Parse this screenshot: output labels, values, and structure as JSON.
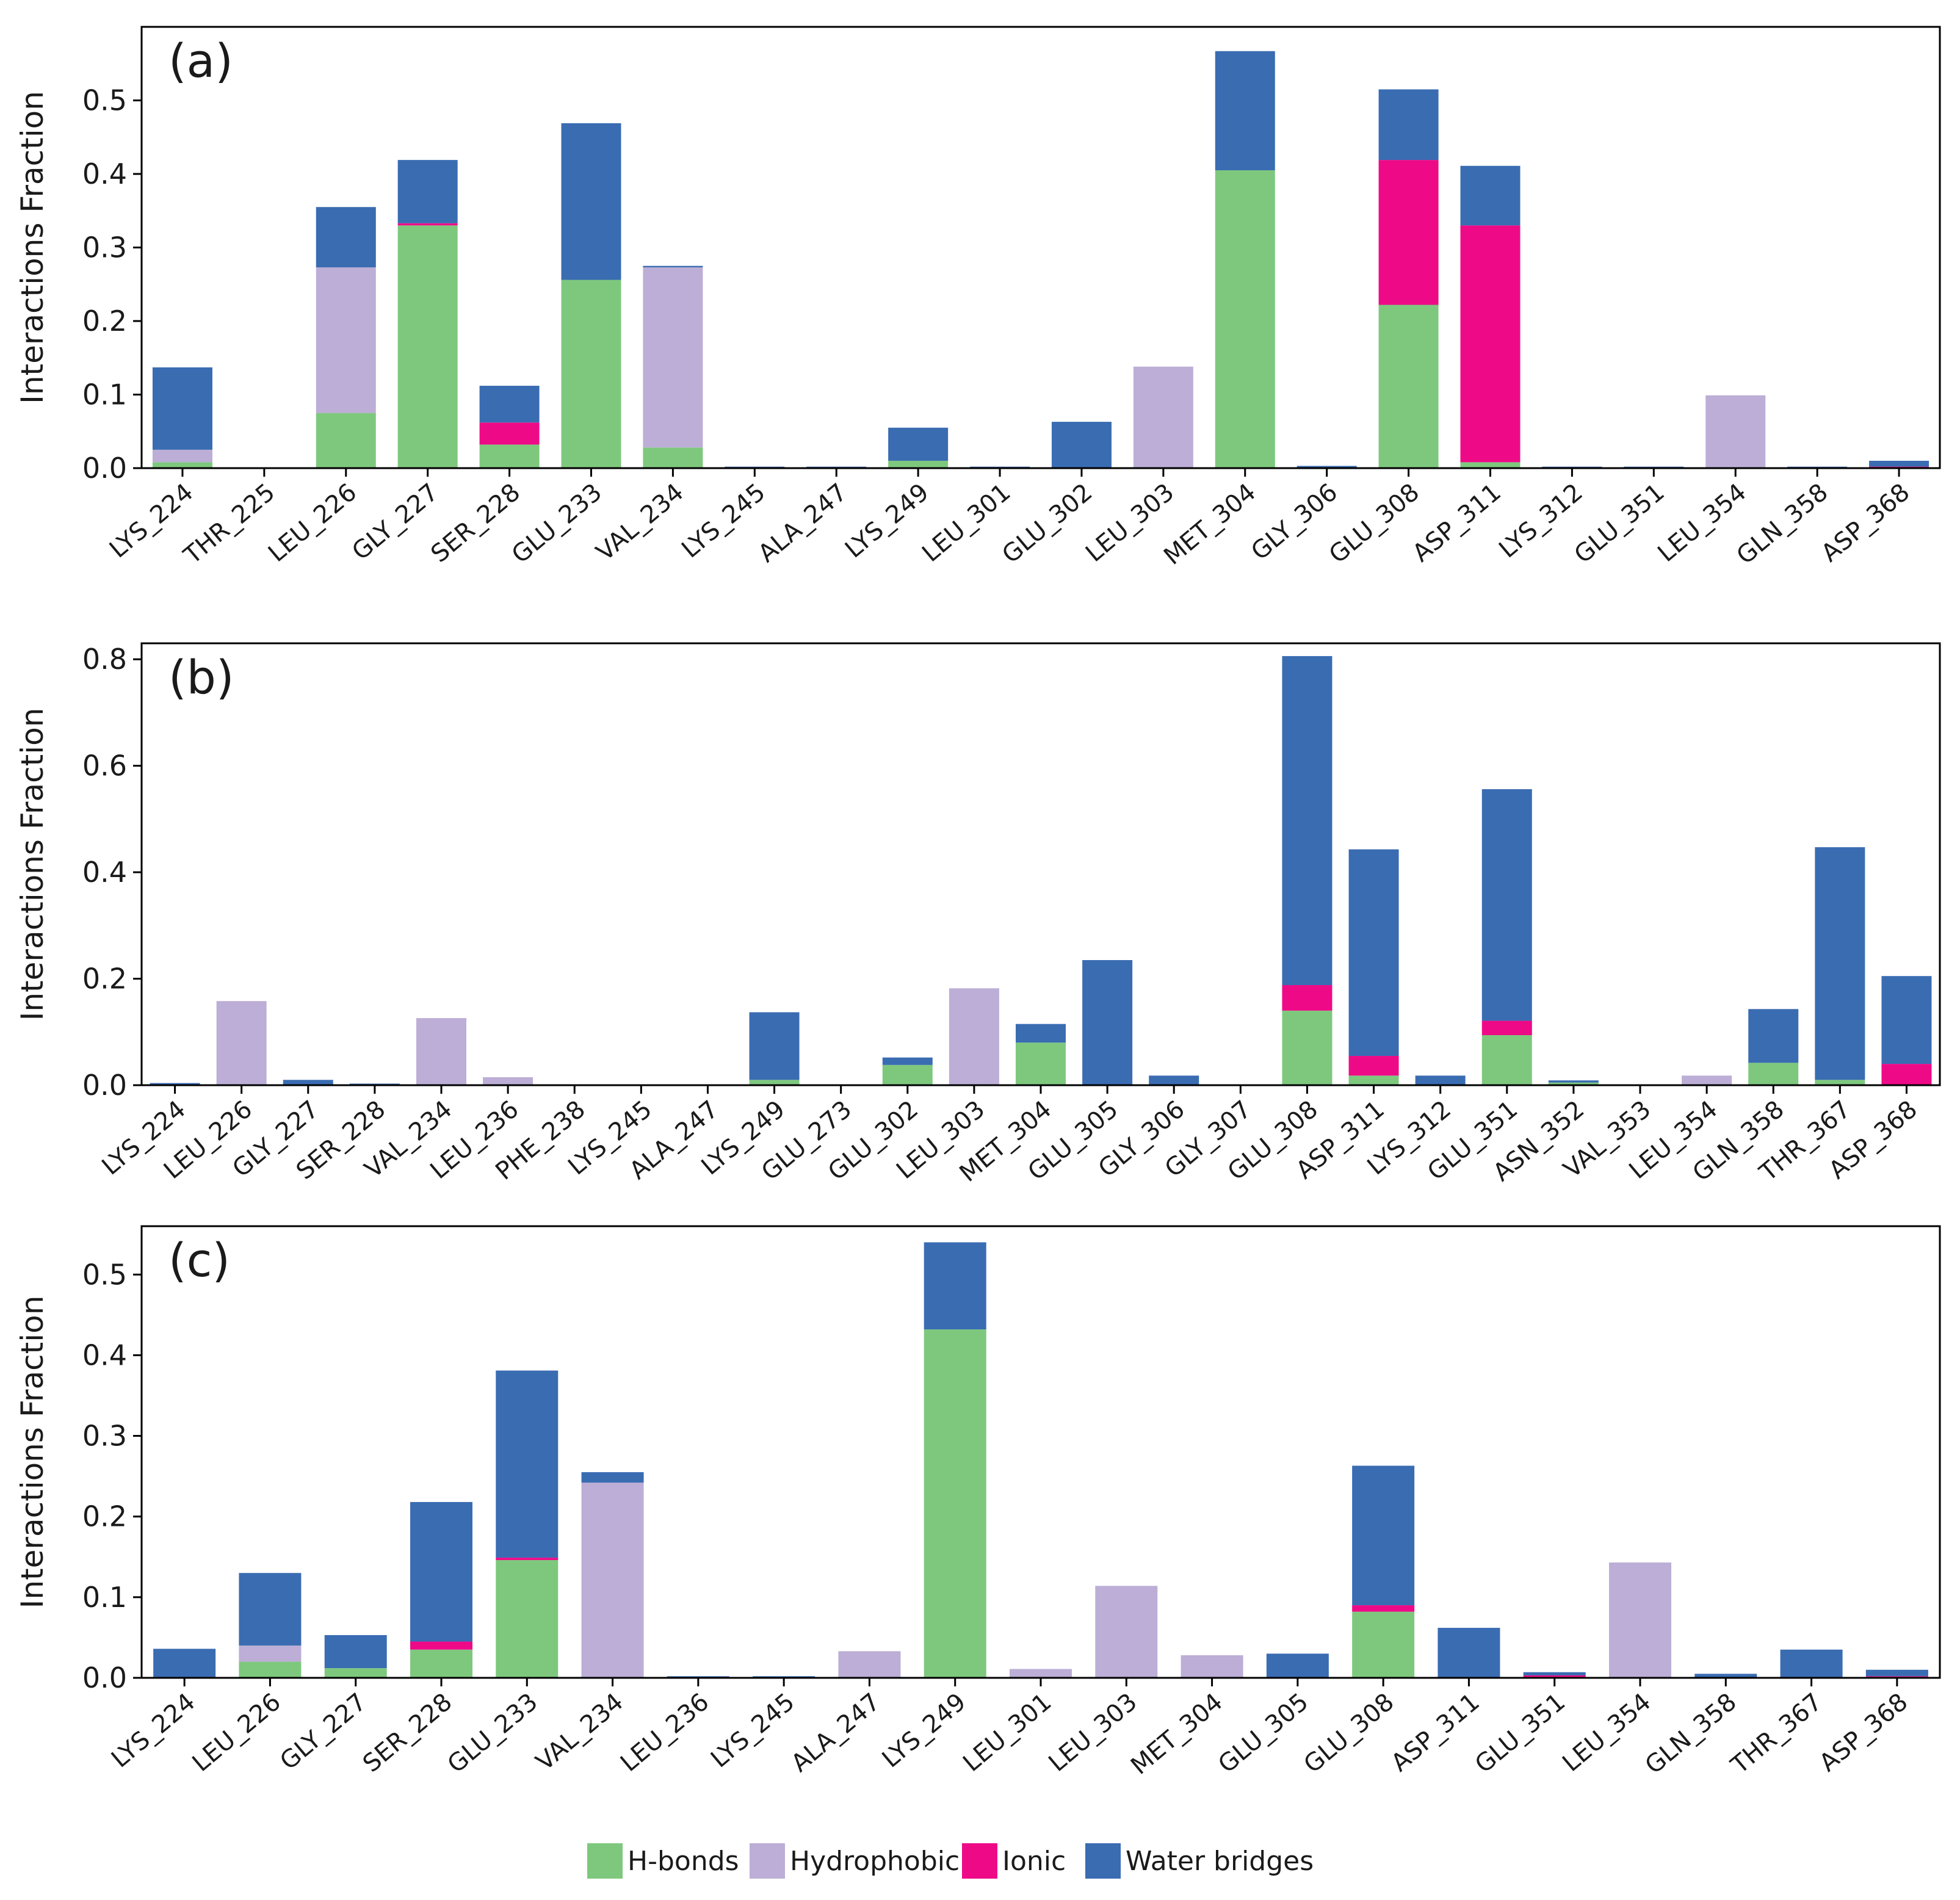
{
  "colors": {
    "hbonds": "#7ec87e",
    "hydrophobic": "#bcaed6",
    "ionic": "#ee0a87",
    "water": "#3a6cb2"
  },
  "legend": {
    "items": [
      {
        "key": "hbonds",
        "label": "H-bonds"
      },
      {
        "key": "hydrophobic",
        "label": "Hydrophobic"
      },
      {
        "key": "ionic",
        "label": "Ionic"
      },
      {
        "key": "water",
        "label": "Water bridges"
      }
    ]
  },
  "chart_data": [
    {
      "type": "bar",
      "stacked": true,
      "panel_label": "(a)",
      "ylabel": "Interactions Fraction",
      "xlabel": "",
      "ylim": [
        0,
        0.6
      ],
      "yticks": [
        0.0,
        0.1,
        0.2,
        0.3,
        0.4,
        0.5
      ],
      "categories": [
        "LYS_224",
        "THR_225",
        "LEU_226",
        "GLY_227",
        "SER_228",
        "GLU_233",
        "VAL_234",
        "LYS_245",
        "ALA_247",
        "LYS_249",
        "LEU_301",
        "GLU_302",
        "LEU_303",
        "MET_304",
        "GLY_306",
        "GLU_308",
        "ASP_311",
        "LYS_312",
        "GLU_351",
        "LEU_354",
        "GLN_358",
        "ASP_368"
      ],
      "series": [
        {
          "name": "H-bonds",
          "key": "hbonds",
          "values": [
            0.008,
            0,
            0.075,
            0.33,
            0.032,
            0.256,
            0.028,
            0,
            0,
            0.01,
            0,
            0,
            0,
            0.405,
            0,
            0.222,
            0.008,
            0,
            0,
            0,
            0,
            0
          ]
        },
        {
          "name": "Hydrophobic",
          "key": "hydrophobic",
          "values": [
            0.017,
            0,
            0.198,
            0,
            0,
            0,
            0.245,
            0,
            0,
            0,
            0,
            0,
            0.138,
            0,
            0,
            0,
            0,
            0,
            0,
            0.099,
            0,
            0
          ]
        },
        {
          "name": "Ionic",
          "key": "ionic",
          "values": [
            0,
            0,
            0,
            0.003,
            0.03,
            0,
            0,
            0,
            0,
            0,
            0,
            0,
            0,
            0,
            0,
            0.197,
            0.322,
            0,
            0,
            0,
            0,
            0.002
          ]
        },
        {
          "name": "Water bridges",
          "key": "water",
          "values": [
            0.112,
            0,
            0.082,
            0.086,
            0.05,
            0.213,
            0.002,
            0.002,
            0.002,
            0.045,
            0.002,
            0.063,
            0,
            0.162,
            0.003,
            0.096,
            0.081,
            0.002,
            0.002,
            0,
            0.002,
            0.008
          ]
        }
      ]
    },
    {
      "type": "bar",
      "stacked": true,
      "panel_label": "(b)",
      "ylabel": "Interactions Fraction",
      "xlabel": "",
      "ylim": [
        0,
        0.83
      ],
      "yticks": [
        0.0,
        0.2,
        0.4,
        0.6,
        0.8
      ],
      "categories": [
        "LYS_224",
        "LEU_226",
        "GLY_227",
        "SER_228",
        "VAL_234",
        "LEU_236",
        "PHE_238",
        "LYS_245",
        "ALA_247",
        "LYS_249",
        "GLU_273",
        "GLU_302",
        "LEU_303",
        "MET_304",
        "GLU_305",
        "GLY_306",
        "GLY_307",
        "GLU_308",
        "ASP_311",
        "LYS_312",
        "GLU_351",
        "ASN_352",
        "VAL_353",
        "LEU_354",
        "GLN_358",
        "THR_367",
        "ASP_368"
      ],
      "series": [
        {
          "name": "H-bonds",
          "key": "hbonds",
          "values": [
            0,
            0,
            0,
            0,
            0,
            0,
            0,
            0,
            0,
            0.01,
            0,
            0.038,
            0,
            0.08,
            0,
            0,
            0,
            0.14,
            0.018,
            0,
            0.094,
            0.005,
            0,
            0,
            0.042,
            0.01,
            0
          ]
        },
        {
          "name": "Hydrophobic",
          "key": "hydrophobic",
          "values": [
            0,
            0.158,
            0,
            0,
            0.126,
            0.015,
            0,
            0,
            0,
            0,
            0,
            0,
            0.182,
            0,
            0,
            0,
            0,
            0,
            0,
            0,
            0,
            0,
            0,
            0.018,
            0,
            0,
            0
          ]
        },
        {
          "name": "Ionic",
          "key": "ionic",
          "values": [
            0,
            0,
            0,
            0,
            0,
            0,
            0,
            0,
            0,
            0,
            0,
            0,
            0,
            0,
            0,
            0,
            0,
            0.048,
            0.037,
            0,
            0.027,
            0,
            0,
            0,
            0,
            0,
            0.04
          ]
        },
        {
          "name": "Water bridges",
          "key": "water",
          "values": [
            0.004,
            0,
            0.01,
            0.003,
            0,
            0,
            0,
            0,
            0,
            0.127,
            0,
            0.014,
            0,
            0.035,
            0.235,
            0.018,
            0,
            0.618,
            0.388,
            0.018,
            0.435,
            0.004,
            0,
            0,
            0.101,
            0.437,
            0.165
          ]
        }
      ]
    },
    {
      "type": "bar",
      "stacked": true,
      "panel_label": "(c)",
      "ylabel": "Interactions Fraction",
      "xlabel": "",
      "ylim": [
        0,
        0.56
      ],
      "yticks": [
        0.0,
        0.1,
        0.2,
        0.3,
        0.4,
        0.5
      ],
      "categories": [
        "LYS_224",
        "LEU_226",
        "GLY_227",
        "SER_228",
        "GLU_233",
        "VAL_234",
        "LEU_236",
        "LYS_245",
        "ALA_247",
        "LYS_249",
        "LEU_301",
        "LEU_303",
        "MET_304",
        "GLU_305",
        "GLU_308",
        "ASP_311",
        "GLU_351",
        "LEU_354",
        "GLN_358",
        "THR_367",
        "ASP_368"
      ],
      "series": [
        {
          "name": "H-bonds",
          "key": "hbonds",
          "values": [
            0,
            0.02,
            0.012,
            0.035,
            0.146,
            0,
            0,
            0,
            0,
            0.432,
            0,
            0,
            0,
            0,
            0.082,
            0,
            0,
            0,
            0,
            0,
            0
          ]
        },
        {
          "name": "Hydrophobic",
          "key": "hydrophobic",
          "values": [
            0,
            0.02,
            0,
            0,
            0,
            0.242,
            0,
            0,
            0.033,
            0,
            0.011,
            0.114,
            0.028,
            0,
            0,
            0,
            0,
            0.143,
            0,
            0,
            0
          ]
        },
        {
          "name": "Ionic",
          "key": "ionic",
          "values": [
            0,
            0,
            0,
            0.01,
            0.003,
            0,
            0,
            0,
            0,
            0,
            0,
            0,
            0,
            0,
            0.008,
            0,
            0.003,
            0,
            0,
            0,
            0.002
          ]
        },
        {
          "name": "Water bridges",
          "key": "water",
          "values": [
            0.036,
            0.09,
            0.041,
            0.173,
            0.232,
            0.013,
            0.002,
            0.002,
            0,
            0.108,
            0,
            0,
            0,
            0.03,
            0.173,
            0.062,
            0.004,
            0,
            0.005,
            0.035,
            0.008
          ]
        }
      ]
    }
  ]
}
